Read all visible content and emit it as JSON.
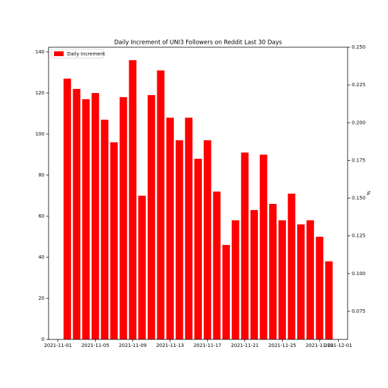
{
  "chart_data": {
    "type": "bar",
    "title": "Daily Increment of UNI3 Followers on Reddit Last 30 Days",
    "x": [
      "2021-11-02",
      "2021-11-03",
      "2021-11-04",
      "2021-11-05",
      "2021-11-06",
      "2021-11-07",
      "2021-11-08",
      "2021-11-09",
      "2021-11-10",
      "2021-11-11",
      "2021-11-12",
      "2021-11-13",
      "2021-11-14",
      "2021-11-15",
      "2021-11-16",
      "2021-11-17",
      "2021-11-18",
      "2021-11-19",
      "2021-11-20",
      "2021-11-21",
      "2021-11-22",
      "2021-11-23",
      "2021-11-24",
      "2021-11-25",
      "2021-11-26",
      "2021-11-27",
      "2021-11-28",
      "2021-11-29",
      "2021-11-30"
    ],
    "series": [
      {
        "name": "Daily Increment",
        "color": "#ff0000",
        "values": [
          127,
          122,
          117,
          120,
          107,
          96,
          118,
          136,
          70,
          119,
          131,
          108,
          97,
          108,
          88,
          97,
          72,
          46,
          58,
          91,
          63,
          90,
          66,
          58,
          71,
          56,
          58,
          50,
          38
        ]
      }
    ],
    "xlim": [
      "2021-10-31",
      "2021-12-02"
    ],
    "xticks": [
      "2021-11-01",
      "2021-11-05",
      "2021-11-09",
      "2021-11-13",
      "2021-11-17",
      "2021-11-21",
      "2021-11-25",
      "2021-11-29",
      "2021-12-01"
    ],
    "ylim": [
      0,
      142.3
    ],
    "yticks": [
      0,
      20,
      40,
      60,
      80,
      100,
      120,
      140
    ],
    "y2lim": [
      0.0564,
      0.25
    ],
    "y2ticks": [
      {
        "value": 0.075,
        "label": "0.075"
      },
      {
        "value": 0.1,
        "label": "0.100"
      },
      {
        "value": 0.125,
        "label": "0.125"
      },
      {
        "value": 0.15,
        "label": "0.150"
      },
      {
        "value": 0.175,
        "label": "0.175"
      },
      {
        "value": 0.2,
        "label": "0.200"
      },
      {
        "value": 0.225,
        "label": "0.225"
      },
      {
        "value": 0.25,
        "label": "0.250"
      }
    ],
    "y2label": "%",
    "legend": "upper left"
  }
}
